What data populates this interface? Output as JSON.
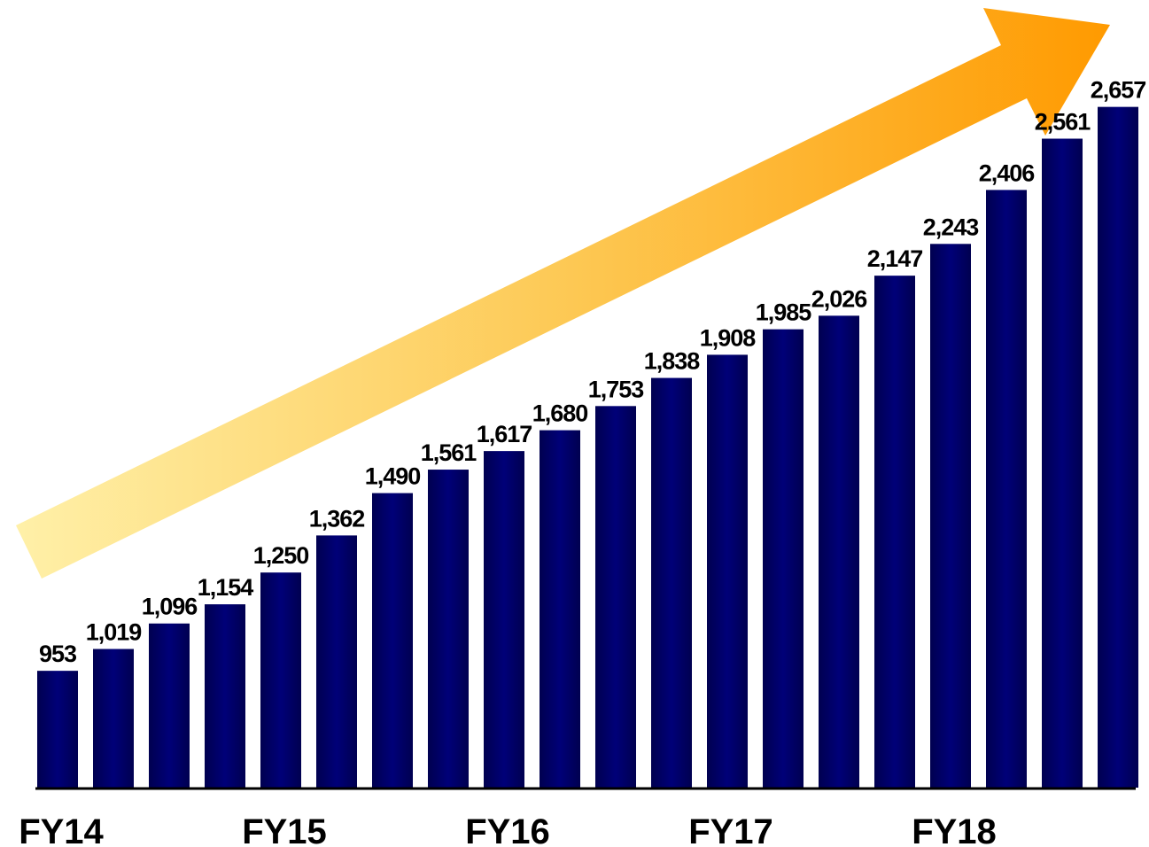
{
  "chart_data": {
    "type": "bar",
    "categories": [
      "FY14",
      null,
      null,
      null,
      "FY15",
      null,
      null,
      null,
      "FY16",
      null,
      null,
      null,
      "FY17",
      null,
      null,
      null,
      "FY18",
      null,
      null,
      null
    ],
    "values": [
      953,
      1019,
      1096,
      1154,
      1250,
      1362,
      1490,
      1561,
      1617,
      1680,
      1753,
      1838,
      1908,
      1985,
      2026,
      2147,
      2243,
      2406,
      2561,
      2657
    ],
    "value_labels": [
      "953",
      "1,019",
      "1,096",
      "1,154",
      "1,250",
      "1,362",
      "1,490",
      "1,561",
      "1,617",
      "1,680",
      "1,753",
      "1,838",
      "1,908",
      "1,985",
      "2,026",
      "2,147",
      "2,243",
      "2,406",
      "2,561",
      "2,657"
    ],
    "color": "#000066",
    "ylim": [
      600,
      2980
    ]
  }
}
